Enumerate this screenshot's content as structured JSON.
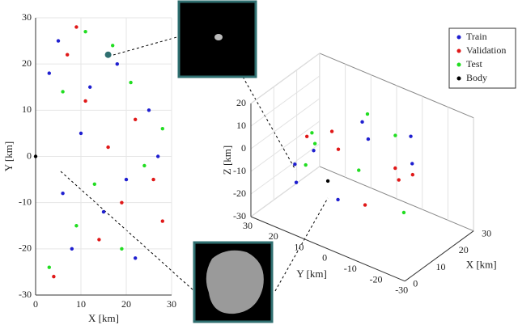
{
  "chart_data": [
    {
      "type": "scatter",
      "xlabel": "X [km]",
      "ylabel": "Y [km]",
      "xlim": [
        0,
        30
      ],
      "ylim": [
        -30,
        30
      ],
      "xticks": [
        0,
        10,
        20,
        30
      ],
      "yticks": [
        -30,
        -20,
        -10,
        0,
        10,
        20,
        30
      ],
      "grid": true,
      "series": [
        {
          "name": "Train",
          "color": "#1f1fd0",
          "x": [
            5,
            12,
            20,
            8,
            25,
            15,
            3,
            18,
            10,
            22,
            6,
            27
          ],
          "values": [
            25,
            15,
            -5,
            -20,
            10,
            -12,
            18,
            20,
            5,
            -22,
            -8,
            0
          ]
        },
        {
          "name": "Validation",
          "color": "#e01818",
          "x": [
            7,
            14,
            22,
            4,
            26,
            11,
            19,
            9,
            16,
            28
          ],
          "values": [
            22,
            -18,
            8,
            -26,
            -5,
            12,
            -10,
            28,
            2,
            -14
          ]
        },
        {
          "name": "Test",
          "color": "#22dd22",
          "x": [
            9,
            17,
            24,
            6,
            13,
            21,
            3,
            28,
            11,
            19
          ],
          "values": [
            -15,
            24,
            -2,
            14,
            -6,
            16,
            -24,
            6,
            27,
            -20
          ]
        },
        {
          "name": "Body",
          "color": "#000000",
          "x": [
            0
          ],
          "values": [
            0
          ]
        }
      ]
    },
    {
      "type": "scatter3d",
      "xlabel": "X [km]",
      "ylabel": "Y [km]",
      "zlabel": "Z [km]",
      "xlim": [
        0,
        30
      ],
      "ylim": [
        -30,
        30
      ],
      "zlim": [
        -30,
        20
      ],
      "xticks": [
        0,
        10,
        20,
        30
      ],
      "yticks": [
        -30,
        -20,
        -10,
        0,
        10,
        20,
        30
      ],
      "zticks": [
        -30,
        -20,
        -10,
        0,
        10,
        20
      ],
      "legend": "upper right",
      "series": [
        {
          "name": "Train",
          "color": "#1f1fd0",
          "x": [
            5,
            12,
            8,
            20,
            15,
            3,
            25,
            10
          ],
          "y": [
            10,
            -5,
            20,
            -15,
            0,
            15,
            -10,
            5
          ],
          "z": [
            5,
            12,
            -8,
            0,
            15,
            -10,
            6,
            -18
          ]
        },
        {
          "name": "Validation",
          "color": "#e01818",
          "x": [
            7,
            18,
            4,
            22,
            11,
            14,
            9
          ],
          "y": [
            -20,
            12,
            2,
            -8,
            18,
            -2,
            -25
          ],
          "z": [
            10,
            -5,
            18,
            -12,
            3,
            -20,
            8
          ]
        },
        {
          "name": "Test",
          "color": "#22dd22",
          "x": [
            6,
            16,
            13,
            24,
            9,
            2,
            19
          ],
          "y": [
            14,
            -12,
            -18,
            6,
            -4,
            8,
            22
          ],
          "z": [
            -4,
            14,
            -15,
            9,
            0,
            16,
            -8
          ]
        },
        {
          "name": "Body",
          "color": "#000000",
          "x": [
            0
          ],
          "y": [
            0
          ],
          "z": [
            0
          ]
        }
      ]
    }
  ]
}
